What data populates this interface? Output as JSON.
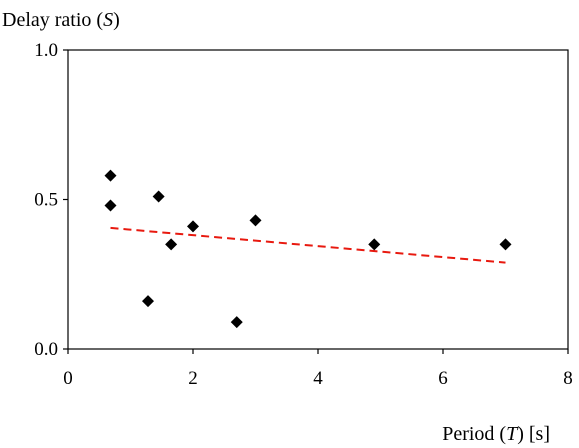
{
  "chart_data": {
    "type": "scatter",
    "ylabel_prefix": "Delay ratio (",
    "ylabel_var": "S",
    "ylabel_suffix": ")",
    "xlabel_prefix": "Period (",
    "xlabel_var": "T",
    "xlabel_suffix": ") [s]",
    "xlim": [
      0,
      8
    ],
    "ylim": [
      0.0,
      1.0
    ],
    "x_ticks": [
      0,
      2,
      4,
      6,
      8
    ],
    "x_tick_labels": [
      "0",
      "2",
      "4",
      "6",
      "8"
    ],
    "y_ticks": [
      0.0,
      0.5,
      1.0
    ],
    "y_tick_labels": [
      "0.0",
      "0.5",
      "1.0"
    ],
    "grid": false,
    "points": [
      {
        "x": 0.68,
        "y": 0.58
      },
      {
        "x": 0.68,
        "y": 0.48
      },
      {
        "x": 1.45,
        "y": 0.51
      },
      {
        "x": 1.65,
        "y": 0.35
      },
      {
        "x": 2.0,
        "y": 0.41
      },
      {
        "x": 1.28,
        "y": 0.16
      },
      {
        "x": 2.7,
        "y": 0.09
      },
      {
        "x": 3.0,
        "y": 0.43
      },
      {
        "x": 4.9,
        "y": 0.35
      },
      {
        "x": 7.0,
        "y": 0.35
      }
    ],
    "trendline": {
      "style": "dashed",
      "color": "#e8190f",
      "x": [
        0.68,
        7.0
      ],
      "y": [
        0.405,
        0.289
      ]
    },
    "marker_color": "#000000"
  }
}
